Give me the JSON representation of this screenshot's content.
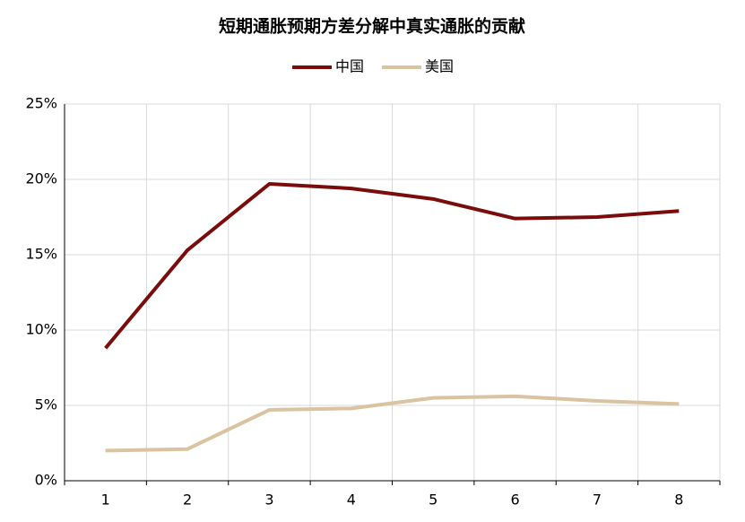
{
  "chart_data": {
    "type": "line",
    "title": "短期通胀预期方差分解中真实通胀的贡献",
    "categories": [
      "1",
      "2",
      "3",
      "4",
      "5",
      "6",
      "7",
      "8"
    ],
    "series": [
      {
        "name": "中国",
        "color": "#7b0c0c",
        "values": [
          8.8,
          15.3,
          19.7,
          19.4,
          18.7,
          17.4,
          17.5,
          17.9
        ]
      },
      {
        "name": "美国",
        "color": "#d9c3a0",
        "values": [
          2.0,
          2.1,
          4.7,
          4.8,
          5.5,
          5.6,
          5.3,
          5.1
        ]
      }
    ],
    "ylim": [
      0,
      25
    ],
    "yticks": [
      {
        "value": 0,
        "label": "0%"
      },
      {
        "value": 5,
        "label": "5%"
      },
      {
        "value": 10,
        "label": "10%"
      },
      {
        "value": 15,
        "label": "15%"
      },
      {
        "value": 20,
        "label": "20%"
      },
      {
        "value": 25,
        "label": "25%"
      }
    ],
    "grid": true,
    "legend": "top"
  }
}
